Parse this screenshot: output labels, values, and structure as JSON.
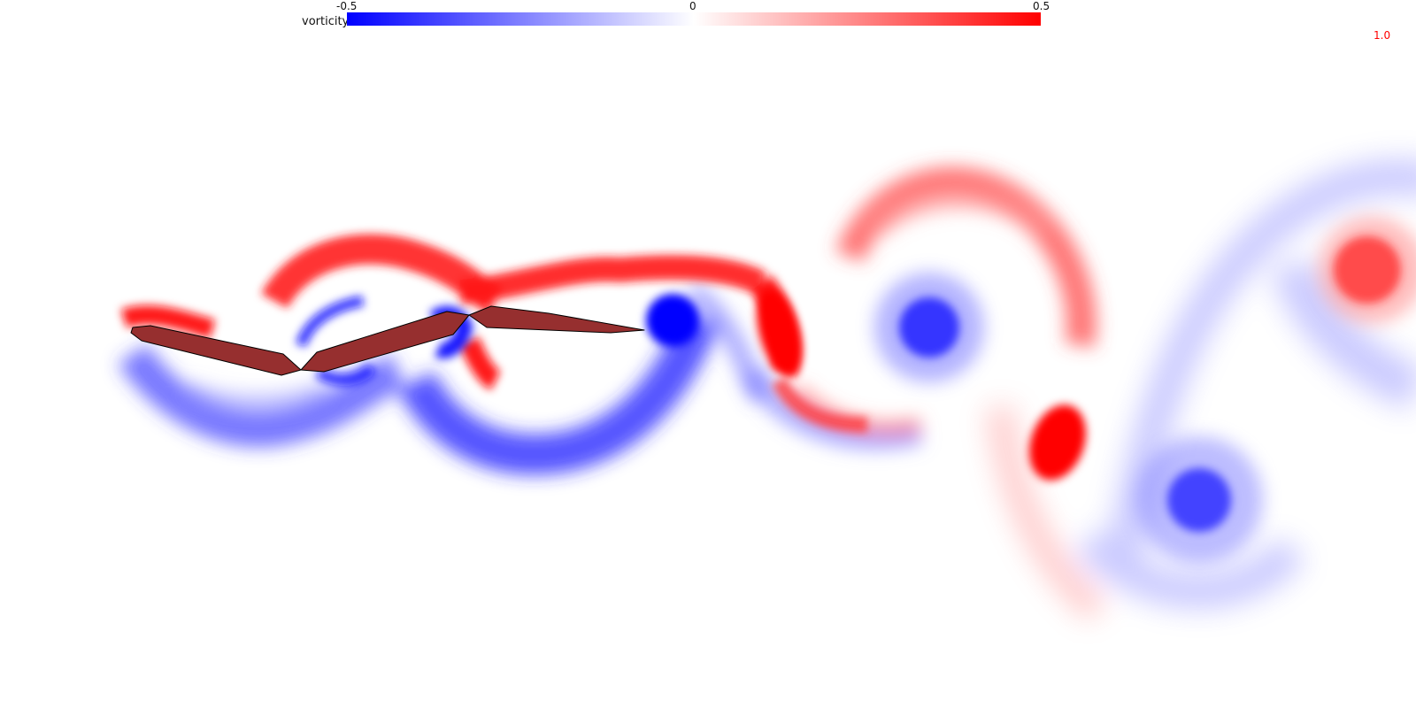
{
  "colorbar": {
    "label": "vorticity",
    "min_label": "-0.5",
    "mid_label": "0",
    "max_label": "0.5",
    "range": [
      -0.5,
      0.5
    ],
    "colors": {
      "negative": "#0000ff",
      "zero": "#ffffff",
      "positive": "#ff0000"
    }
  },
  "time_label": "1.0",
  "time_label_color": "#ff0000",
  "foil_color": "#962f2f",
  "foil_outline_color": "#000000"
}
